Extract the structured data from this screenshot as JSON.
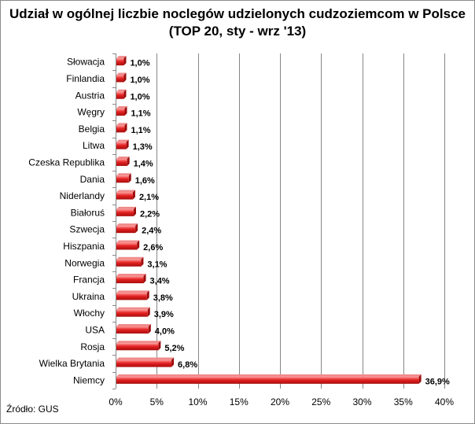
{
  "chart_data": {
    "type": "bar",
    "orientation": "horizontal",
    "title_line1": "Udział w ogólnej liczbie noclegów udzielonych cudzoziemcom w Polsce",
    "title_line2": "(TOP 20, sty - wrz '13)",
    "source": "Źródło: GUS",
    "categories": [
      "Słowacja",
      "Finlandia",
      "Austria",
      "Węgry",
      "Belgia",
      "Litwa",
      "Czeska Republika",
      "Dania",
      "Niderlandy",
      "Białoruś",
      "Szwecja",
      "Hiszpania",
      "Norwegia",
      "Francja",
      "Ukraina",
      "Włochy",
      "USA",
      "Rosja",
      "Wielka Brytania",
      "Niemcy"
    ],
    "values": [
      1.0,
      1.0,
      1.0,
      1.1,
      1.1,
      1.3,
      1.4,
      1.6,
      2.1,
      2.2,
      2.4,
      2.6,
      3.1,
      3.4,
      3.8,
      3.9,
      4.0,
      5.2,
      6.8,
      36.9
    ],
    "data_labels": [
      "1,0%",
      "1,0%",
      "1,0%",
      "1,1%",
      "1,1%",
      "1,3%",
      "1,4%",
      "1,6%",
      "2,1%",
      "2,2%",
      "2,4%",
      "2,6%",
      "3,1%",
      "3,4%",
      "3,8%",
      "3,9%",
      "4,0%",
      "5,2%",
      "6,8%",
      "36,9%"
    ],
    "xlim": [
      0,
      40
    ],
    "x_ticks": [
      0,
      5,
      10,
      15,
      20,
      25,
      30,
      35,
      40
    ],
    "x_tick_labels": [
      "0%",
      "5%",
      "10%",
      "15%",
      "20%",
      "25%",
      "30%",
      "35%",
      "40%"
    ],
    "grid": "vertical",
    "legend": "none",
    "bar_color": "#d91e1e"
  }
}
